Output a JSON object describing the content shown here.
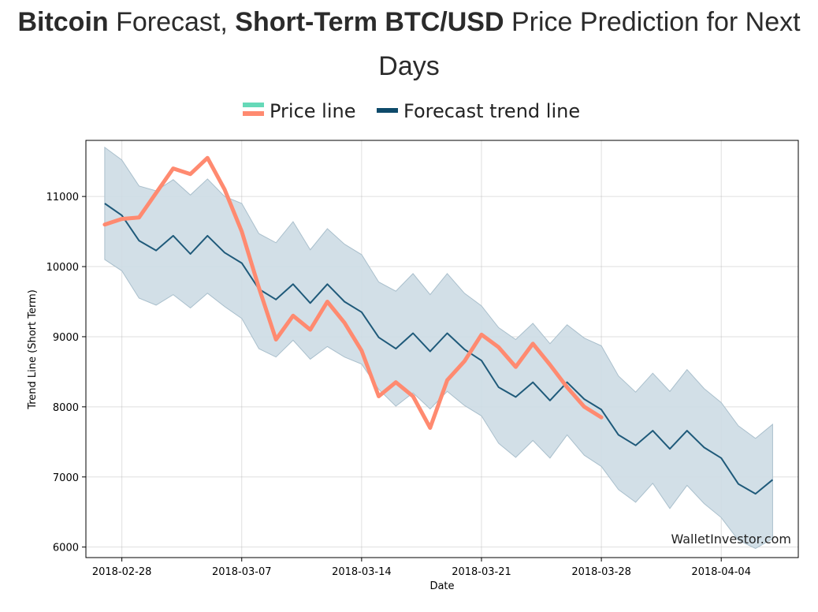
{
  "header": {
    "title_parts": [
      "Bitcoin",
      " Forecast, ",
      "Short-Term BTC/USD",
      " Price Prediction for Next",
      "Days"
    ]
  },
  "chart_data": {
    "type": "line",
    "title": "Bitcoin Forecast, Short-Term BTC/USD Price Prediction for Next Days",
    "xlabel": "Date",
    "ylabel": "Trend Line (Short Term)",
    "ylim": [
      5850,
      11800
    ],
    "xlim": [
      -1.1,
      40.5
    ],
    "x_ticks": [
      {
        "index": 1,
        "label": "2018-02-28"
      },
      {
        "index": 8,
        "label": "2018-03-07"
      },
      {
        "index": 15,
        "label": "2018-03-14"
      },
      {
        "index": 22,
        "label": "2018-03-21"
      },
      {
        "index": 29,
        "label": "2018-03-28"
      },
      {
        "index": 36,
        "label": "2018-04-04"
      }
    ],
    "y_ticks": [
      6000,
      7000,
      8000,
      9000,
      10000,
      11000
    ],
    "grid": true,
    "legend": {
      "placement": "top-center",
      "entries": [
        "Price line",
        "Forecast trend line"
      ]
    },
    "watermark": "WalletInvestor.com",
    "colors": {
      "price": "#ff8a70",
      "forecast": "#1f5a7a",
      "band": "#cddbe4",
      "band_edge": "#a9bfcc",
      "legend_price": "#66d9b8",
      "legend_forecast": "#0e4a6a"
    },
    "series": [
      {
        "name": "Price line",
        "x": [
          0,
          1,
          2,
          3,
          4,
          5,
          6,
          7,
          8,
          9,
          10,
          11,
          12,
          13,
          14,
          15,
          16,
          17,
          18,
          19,
          20,
          21,
          22,
          23,
          24,
          25,
          26,
          27,
          28,
          29
        ],
        "values": [
          10600,
          10680,
          10700,
          11050,
          11400,
          11320,
          11550,
          11100,
          10500,
          9700,
          8960,
          9300,
          9100,
          9500,
          9200,
          8800,
          8150,
          8350,
          8150,
          7700,
          8380,
          8650,
          9030,
          8850,
          8570,
          8900,
          8600,
          8280,
          8000,
          7850
        ]
      },
      {
        "name": "Forecast trend line",
        "x": [
          0,
          1,
          2,
          3,
          4,
          5,
          6,
          7,
          8,
          9,
          10,
          11,
          12,
          13,
          14,
          15,
          16,
          17,
          18,
          19,
          20,
          21,
          22,
          23,
          24,
          25,
          26,
          27,
          28,
          29,
          30,
          31,
          32,
          33,
          34,
          35,
          36,
          37,
          38,
          39
        ],
        "values": [
          10900,
          10730,
          10370,
          10230,
          10440,
          10180,
          10440,
          10200,
          10050,
          9680,
          9530,
          9750,
          9480,
          9750,
          9500,
          9350,
          8990,
          8830,
          9050,
          8790,
          9050,
          8820,
          8660,
          8280,
          8140,
          8350,
          8090,
          8350,
          8110,
          7960,
          7600,
          7450,
          7660,
          7400,
          7660,
          7420,
          7270,
          6900,
          6760,
          6960
        ]
      },
      {
        "name": "Forecast band upper",
        "x": [
          0,
          1,
          2,
          3,
          4,
          5,
          6,
          7,
          8,
          9,
          10,
          11,
          12,
          13,
          14,
          15,
          16,
          17,
          18,
          19,
          20,
          21,
          22,
          23,
          24,
          25,
          26,
          27,
          28,
          29,
          30,
          31,
          32,
          33,
          34,
          35,
          36,
          37,
          38,
          39
        ],
        "values": [
          11700,
          11520,
          11150,
          11080,
          11240,
          11020,
          11250,
          11000,
          10900,
          10470,
          10340,
          10640,
          10240,
          10540,
          10320,
          10170,
          9780,
          9650,
          9900,
          9600,
          9900,
          9620,
          9440,
          9130,
          8960,
          9190,
          8900,
          9170,
          8980,
          8870,
          8440,
          8210,
          8480,
          8220,
          8530,
          8260,
          8060,
          7730,
          7550,
          7750
        ]
      },
      {
        "name": "Forecast band lower",
        "x": [
          0,
          1,
          2,
          3,
          4,
          5,
          6,
          7,
          8,
          9,
          10,
          11,
          12,
          13,
          14,
          15,
          16,
          17,
          18,
          19,
          20,
          21,
          22,
          23,
          24,
          25,
          26,
          27,
          28,
          29,
          30,
          31,
          32,
          33,
          34,
          35,
          36,
          37,
          38,
          39
        ],
        "values": [
          10100,
          9940,
          9550,
          9450,
          9600,
          9410,
          9620,
          9430,
          9260,
          8830,
          8710,
          8950,
          8680,
          8860,
          8710,
          8610,
          8250,
          8010,
          8200,
          7970,
          8220,
          8020,
          7870,
          7480,
          7280,
          7520,
          7270,
          7600,
          7310,
          7150,
          6820,
          6640,
          6910,
          6550,
          6880,
          6620,
          6420,
          6100,
          5980,
          6120
        ]
      }
    ]
  }
}
